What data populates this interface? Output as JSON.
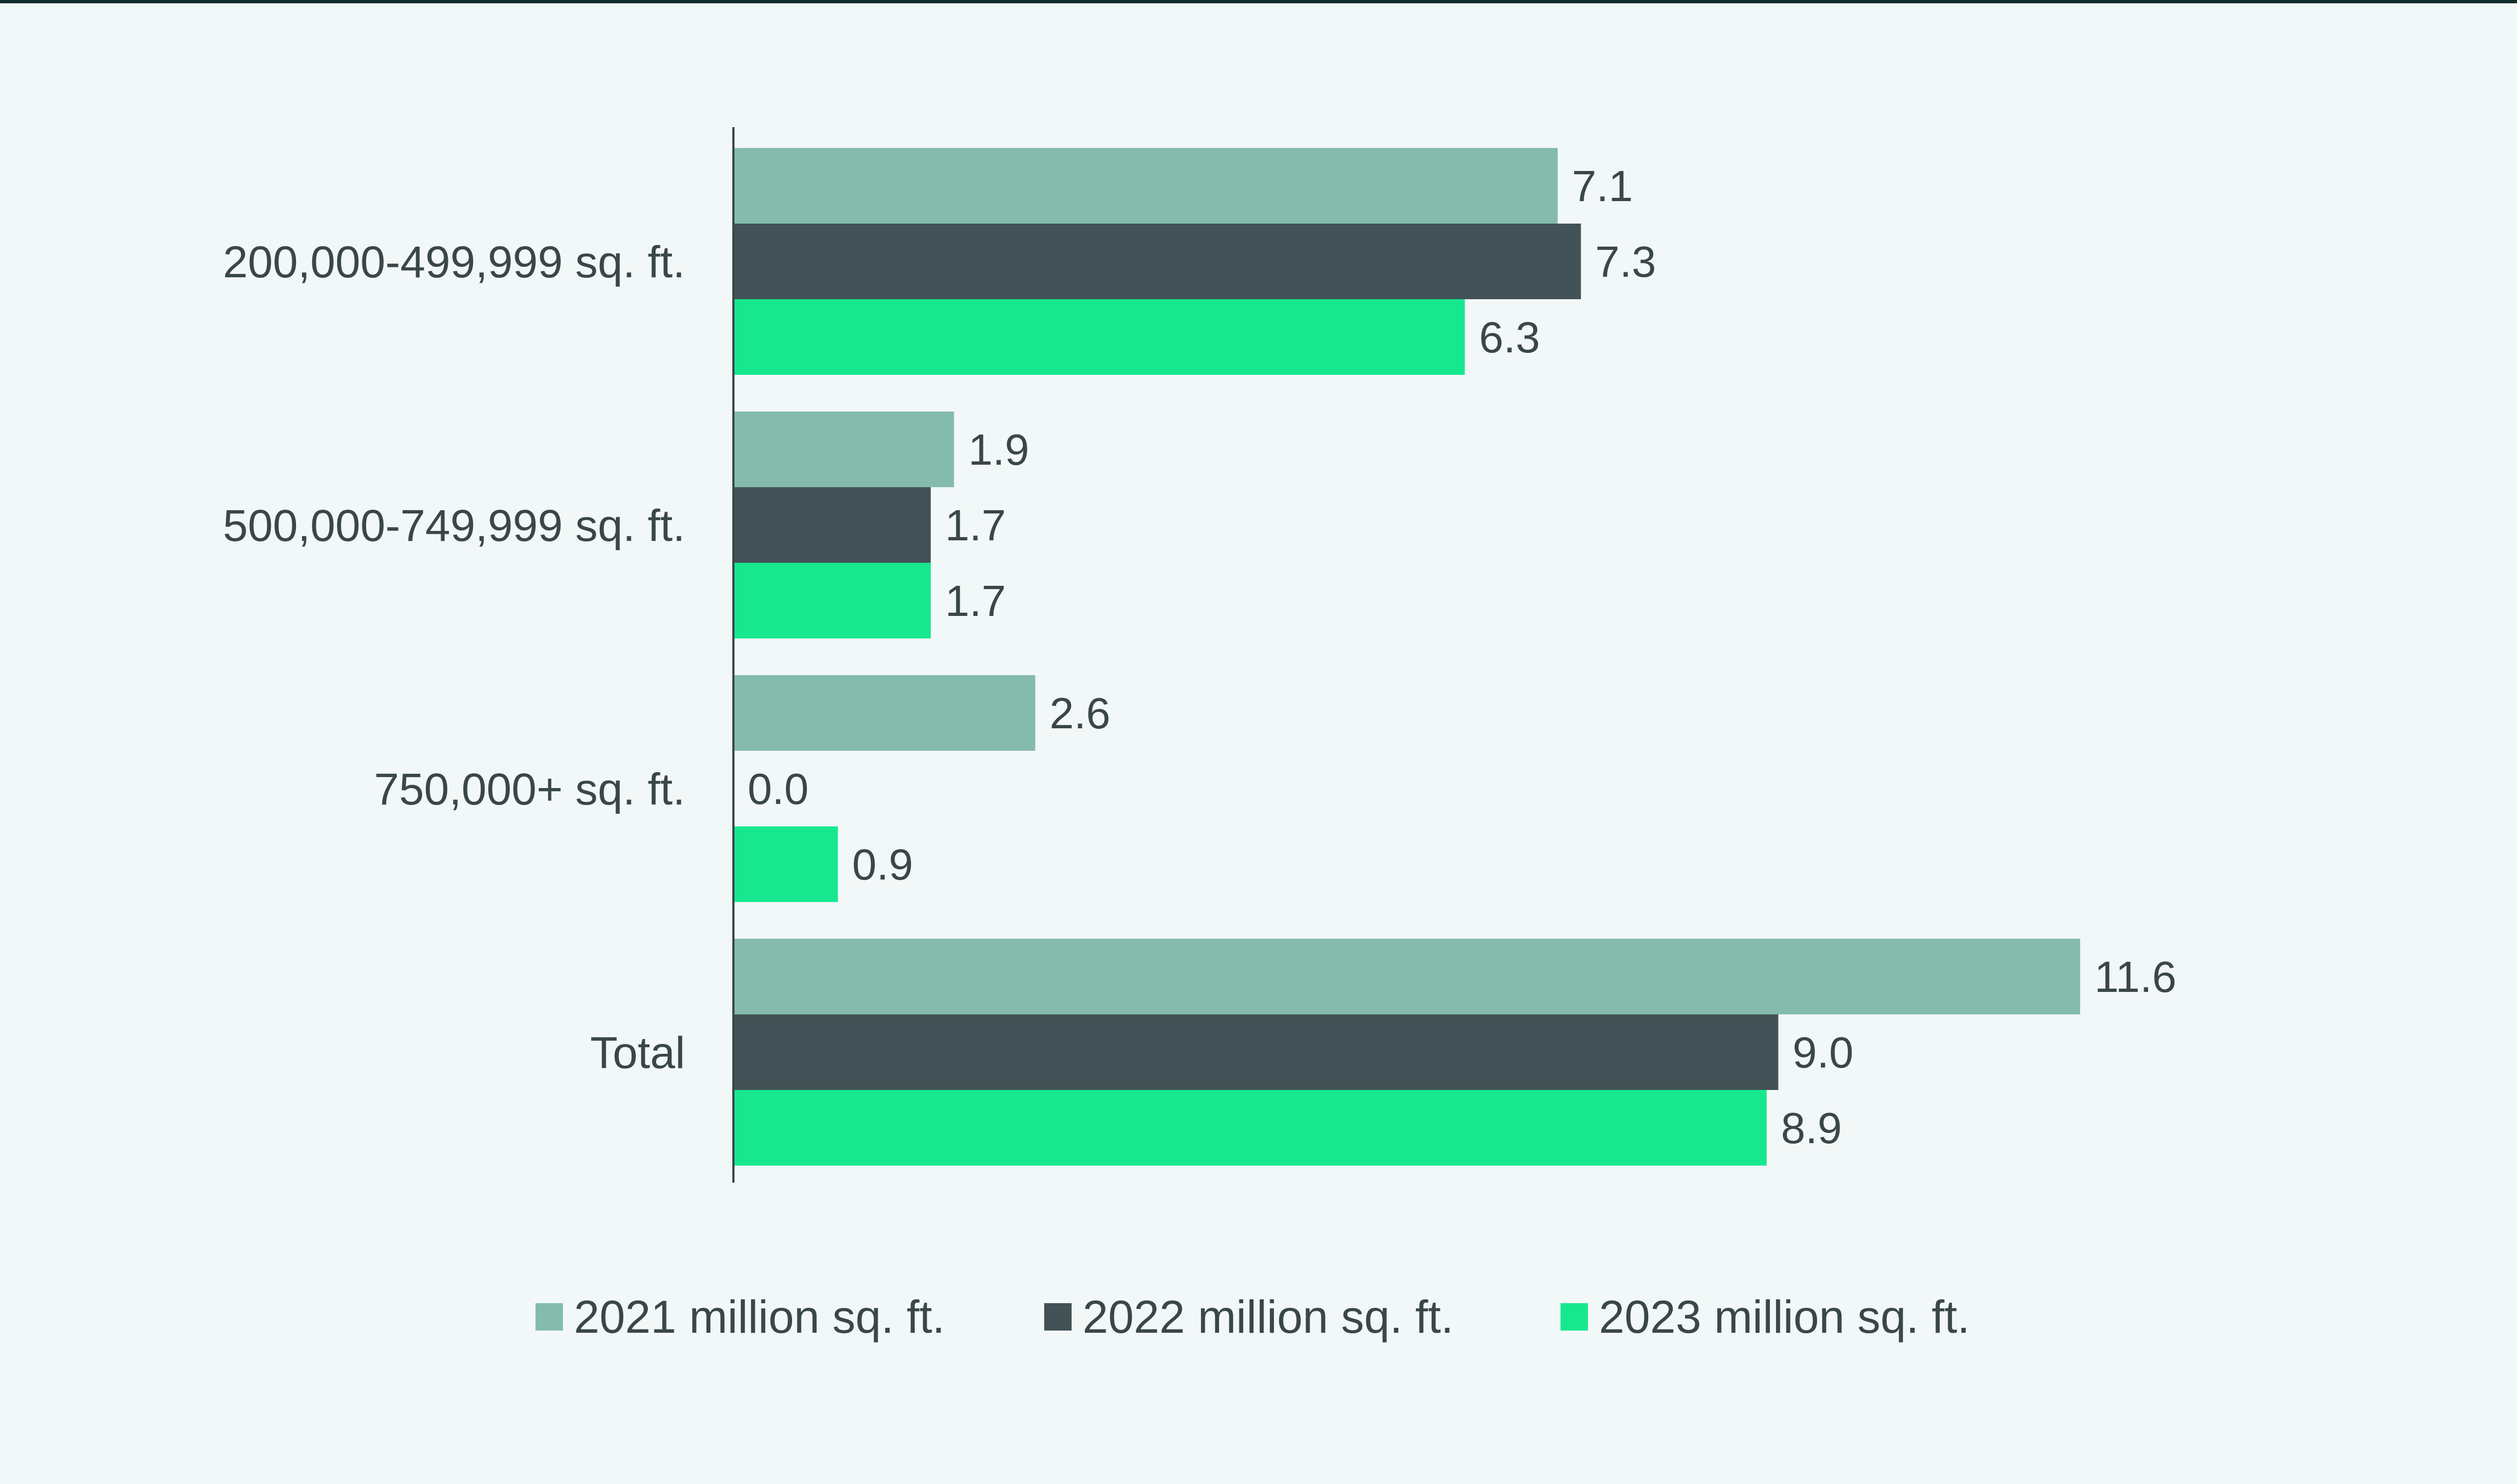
{
  "chart_data": {
    "type": "bar",
    "orientation": "horizontal",
    "categories": [
      "200,000-499,999 sq. ft.",
      "500,000-749,999 sq. ft.",
      "750,000+ sq. ft.",
      "Total"
    ],
    "series": [
      {
        "name": "2021 million sq. ft.",
        "color": "#84bbad",
        "values": [
          7.1,
          1.9,
          2.6,
          11.6
        ],
        "labels": [
          "7.1",
          "1.9",
          "2.6",
          "11.6"
        ]
      },
      {
        "name": "2022 million sq. ft.",
        "color": "#435256",
        "values": [
          7.3,
          1.7,
          0.0,
          9.0
        ],
        "labels": [
          "7.3",
          "1.7",
          "0.0",
          "9.0"
        ]
      },
      {
        "name": "2023 million sq. ft.",
        "color": "#17e88f",
        "values": [
          6.3,
          1.7,
          0.9,
          8.9
        ],
        "labels": [
          "6.3",
          "1.7",
          "0.9",
          "8.9"
        ]
      }
    ],
    "title": "",
    "xlabel": "",
    "ylabel": "",
    "xlim": [
      0,
      11.6
    ],
    "grid": false,
    "legend_position": "bottom-center"
  }
}
